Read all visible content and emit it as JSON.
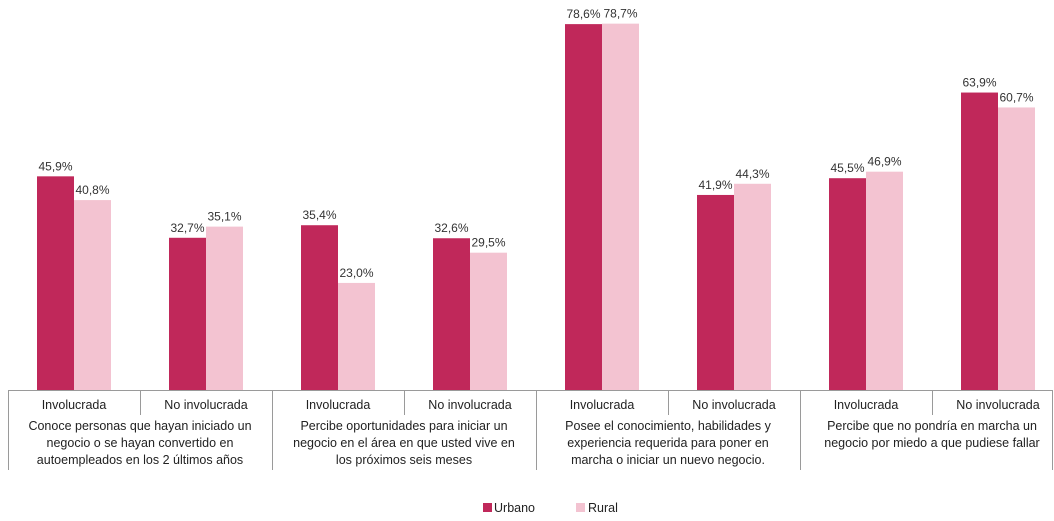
{
  "chart_data": {
    "type": "bar",
    "groups": [
      {
        "label_lines": [
          "Conoce personas que hayan iniciado un",
          "negocio o se hayan convertido en",
          "autoempleados en los 2 últimos años"
        ],
        "categories": [
          "Involucrada",
          "No involucrada"
        ]
      },
      {
        "label_lines": [
          "Percibe oportunidades para iniciar un",
          "negocio en el área en que usted vive en",
          "los próximos seis meses"
        ],
        "categories": [
          "Involucrada",
          "No involucrada"
        ]
      },
      {
        "label_lines": [
          "Posee el conocimiento, habilidades y",
          "experiencia requerida para poner en",
          "marcha o iniciar un nuevo negocio."
        ],
        "categories": [
          "Involucrada",
          "No involucrada"
        ]
      },
      {
        "label_lines": [
          "Percibe que no pondría en marcha un",
          "negocio por miedo a que pudiese fallar"
        ],
        "categories": [
          "Involucrada",
          "No involucrada"
        ]
      }
    ],
    "categories": [
      "Involucrada",
      "No involucrada",
      "Involucrada",
      "No involucrada",
      "Involucrada",
      "No involucrada",
      "Involucrada",
      "No involucrada"
    ],
    "series": [
      {
        "name": "Urbano",
        "color": "#c0285a",
        "values": [
          45.9,
          32.7,
          35.4,
          32.6,
          78.6,
          41.9,
          45.5,
          63.9
        ],
        "labels": [
          "45,9%",
          "32,7%",
          "35,4%",
          "32,6%",
          "78,6%",
          "41,9%",
          "45,5%",
          "63,9%"
        ]
      },
      {
        "name": "Rural",
        "color": "#f3c3d1",
        "values": [
          40.8,
          35.1,
          23.0,
          29.5,
          78.7,
          44.3,
          46.9,
          60.7
        ],
        "labels": [
          "40,8%",
          "35,1%",
          "23,0%",
          "29,5%",
          "78,7%",
          "44,3%",
          "46,9%",
          "60,7%"
        ]
      }
    ],
    "ylim": [
      0,
      80
    ],
    "grid": false,
    "legend": "bottom-center"
  }
}
